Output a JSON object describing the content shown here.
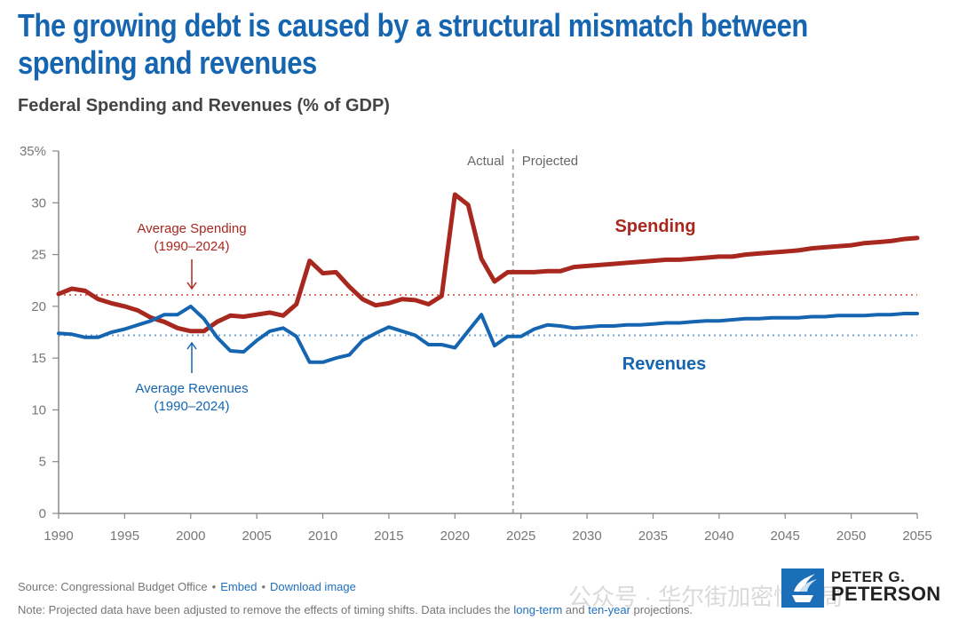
{
  "header": {
    "title": "The growing debt is caused by a structural mismatch between spending and revenues",
    "subtitle": "Federal Spending and Revenues (% of GDP)"
  },
  "chart_data": {
    "type": "line",
    "title": "Federal Spending and Revenues (% of GDP)",
    "xlabel": "",
    "ylabel": "",
    "xlim": [
      1990,
      2055
    ],
    "ylim": [
      0,
      35
    ],
    "x_ticks": [
      1990,
      1995,
      2000,
      2005,
      2010,
      2015,
      2020,
      2025,
      2030,
      2035,
      2040,
      2045,
      2050,
      2055
    ],
    "x_tick_labels": [
      "1990",
      "1995",
      "2000",
      "2005",
      "2010",
      "2015",
      "2020",
      "2025",
      "2030",
      "2035",
      "2040",
      "2045",
      "2050",
      "2055"
    ],
    "y_ticks": [
      0,
      5,
      10,
      15,
      20,
      25,
      30,
      35
    ],
    "y_tick_labels": [
      "0",
      "5",
      "10",
      "15",
      "20",
      "25",
      "30",
      "35%"
    ],
    "grid": false,
    "x_start": 1990,
    "series": [
      {
        "name": "Spending",
        "color": "#a8281f",
        "values": [
          21.2,
          21.7,
          21.5,
          20.7,
          20.3,
          20.0,
          19.6,
          18.9,
          18.5,
          17.9,
          17.6,
          17.6,
          18.5,
          19.1,
          19.0,
          19.2,
          19.4,
          19.1,
          20.2,
          24.4,
          23.2,
          23.3,
          21.9,
          20.7,
          20.1,
          20.3,
          20.7,
          20.6,
          20.2,
          21.0,
          30.8,
          29.8,
          24.6,
          22.4,
          23.3,
          23.3,
          23.3,
          23.4,
          23.4,
          23.8,
          23.9,
          24.0,
          24.1,
          24.2,
          24.3,
          24.4,
          24.5,
          24.5,
          24.6,
          24.7,
          24.8,
          24.8,
          25.0,
          25.1,
          25.2,
          25.3,
          25.4,
          25.6,
          25.7,
          25.8,
          25.9,
          26.1,
          26.2,
          26.3,
          26.5,
          26.6
        ]
      },
      {
        "name": "Revenues",
        "color": "#1565b0",
        "values": [
          17.4,
          17.3,
          17.0,
          17.0,
          17.5,
          17.8,
          18.2,
          18.6,
          19.2,
          19.2,
          20.0,
          18.8,
          17.0,
          15.7,
          15.6,
          16.7,
          17.6,
          17.9,
          17.1,
          14.6,
          14.6,
          15.0,
          15.3,
          16.7,
          17.4,
          18.0,
          17.6,
          17.2,
          16.3,
          16.3,
          16.0,
          17.6,
          19.2,
          16.2,
          17.1,
          17.1,
          17.8,
          18.2,
          18.1,
          17.9,
          18.0,
          18.1,
          18.1,
          18.2,
          18.2,
          18.3,
          18.4,
          18.4,
          18.5,
          18.6,
          18.6,
          18.7,
          18.8,
          18.8,
          18.9,
          18.9,
          18.9,
          19.0,
          19.0,
          19.1,
          19.1,
          19.1,
          19.2,
          19.2,
          19.3,
          19.3
        ]
      }
    ],
    "reference_lines": [
      {
        "name": "Average Spending (1990–2024)",
        "value": 21.1,
        "color": "#d9726b"
      },
      {
        "name": "Average Revenues (1990–2024)",
        "value": 17.2,
        "color": "#6fa6d8"
      }
    ],
    "divider": {
      "x": 2024.4,
      "left_label": "Actual",
      "right_label": "Projected"
    },
    "annotations": {
      "avg_spending_line1": "Average Spending",
      "avg_spending_line2": "(1990–2024)",
      "avg_revenues_line1": "Average Revenues",
      "avg_revenues_line2": "(1990–2024)",
      "spending_label": "Spending",
      "revenues_label": "Revenues"
    },
    "legend": "none"
  },
  "footer": {
    "source": "Source: Congressional Budget Office",
    "embed_link": "Embed",
    "download_link": "Download image",
    "note_prefix": "Note: Projected data have been adjusted to remove the effects of timing shifts. Data includes the ",
    "long_term_link": "long-term",
    "note_and": " and ",
    "ten_year_link": "ten-year",
    "note_suffix": " projections.",
    "bullet": "•"
  },
  "logo": {
    "line1": "PETER G.",
    "line2": "PETERSON"
  },
  "watermark": "公众号 · 华尔街加密情报局"
}
